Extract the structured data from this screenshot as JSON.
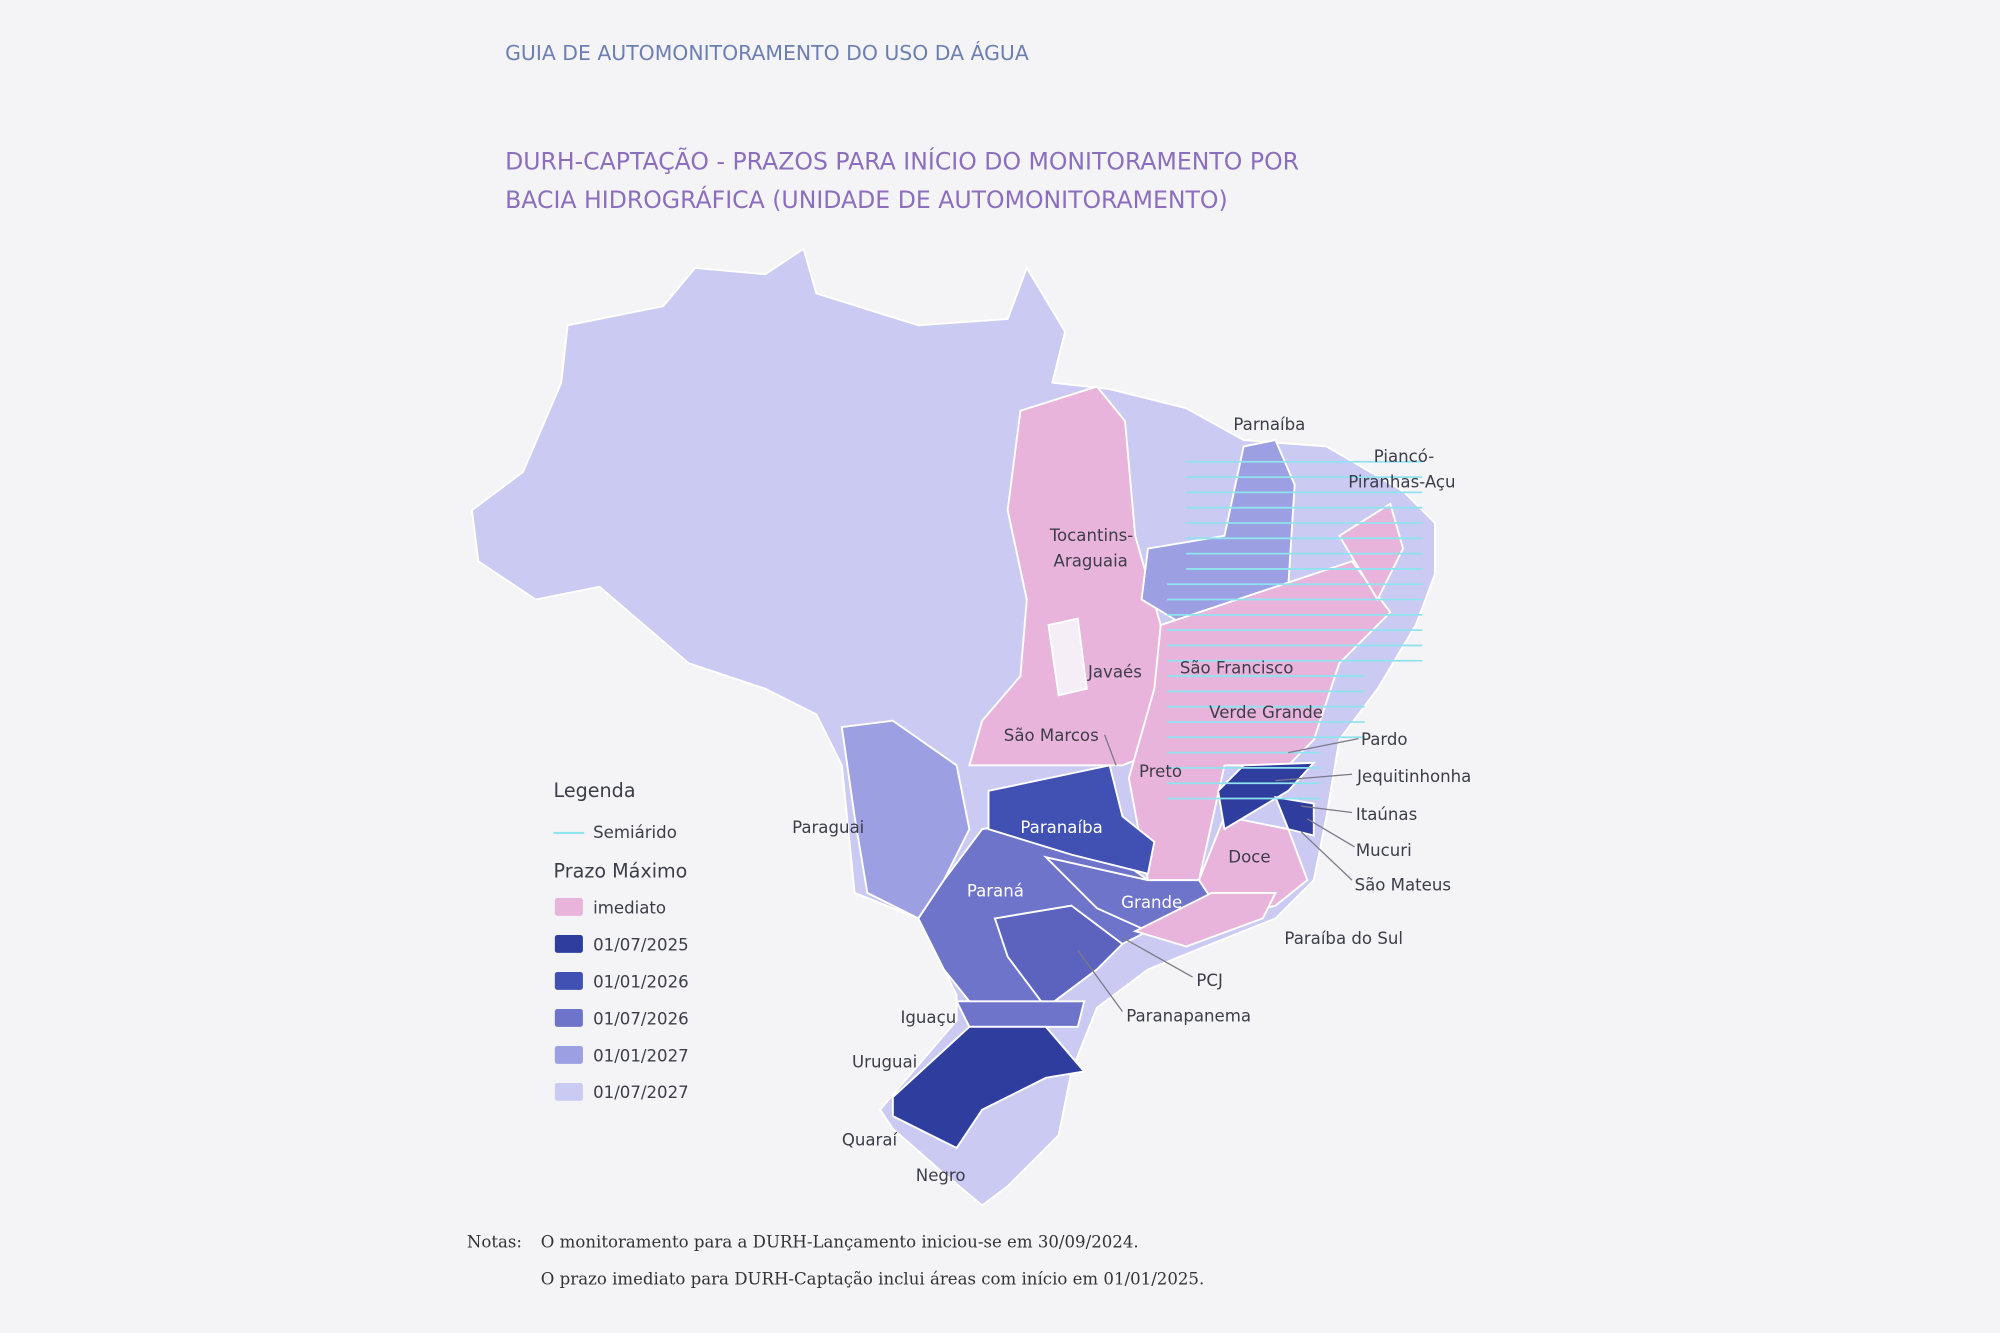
{
  "header": {
    "title": "GUIA DE AUTOMONITORAMENTO DO USO DA ÁGUA"
  },
  "figure": {
    "title_lines": [
      "DURH-CAPTAÇÃO - PRAZOS PARA INÍCIO DO MONITORAMENTO POR",
      "BACIA HIDROGRÁFICA (UNIDADE DE AUTOMONITORAMENTO)"
    ]
  },
  "map": {
    "labels": [
      {
        "lines": [
          "Parnaíba"
        ]
      },
      {
        "lines": [
          "Piancó-",
          "Piranhas-Açu"
        ]
      },
      {
        "lines": [
          "Tocantins-",
          "Araguaia"
        ]
      },
      {
        "lines": [
          "Javaés"
        ]
      },
      {
        "lines": [
          "São Francisco"
        ]
      },
      {
        "lines": [
          "Verde Grande"
        ]
      },
      {
        "lines": [
          "Pardo"
        ]
      },
      {
        "lines": [
          "São Marcos"
        ]
      },
      {
        "lines": [
          "Preto"
        ]
      },
      {
        "lines": [
          "Jequitinhonha"
        ]
      },
      {
        "lines": [
          "Itaúnas"
        ]
      },
      {
        "lines": [
          "Mucuri"
        ]
      },
      {
        "lines": [
          "São Mateus"
        ]
      },
      {
        "lines": [
          "Doce"
        ]
      },
      {
        "lines": [
          "Paraguai"
        ]
      },
      {
        "lines": [
          "Paranaíba"
        ]
      },
      {
        "lines": [
          "Paraná"
        ]
      },
      {
        "lines": [
          "Grande"
        ]
      },
      {
        "lines": [
          "Paraíba do Sul"
        ]
      },
      {
        "lines": [
          "PCJ"
        ]
      },
      {
        "lines": [
          "Paranapanema"
        ]
      },
      {
        "lines": [
          "Iguaçu"
        ]
      },
      {
        "lines": [
          "Uruguai"
        ]
      },
      {
        "lines": [
          "Quaraí"
        ]
      },
      {
        "lines": [
          "Negro"
        ]
      }
    ]
  },
  "legend": {
    "title": "Legenda",
    "semiarid": "Semiárido",
    "subtitle": "Prazo Máximo",
    "items": [
      {
        "label": "imediato",
        "color": "#e9b4dc"
      },
      {
        "label": "01/07/2025",
        "color": "#2f3e9e"
      },
      {
        "label": "01/01/2026",
        "color": "#4050b3"
      },
      {
        "label": "01/07/2026",
        "color": "#6d74c9"
      },
      {
        "label": "01/01/2027",
        "color": "#9c9fe1"
      },
      {
        "label": "01/07/2027",
        "color": "#cbcaf3"
      }
    ]
  },
  "notes": {
    "label": "Notas:",
    "lines": [
      "O monitoramento para a DURH-Lançamento iniciou-se em 30/09/2024.",
      "O prazo imediato para DURH-Captação inclui áreas com início em 01/01/2025."
    ]
  }
}
